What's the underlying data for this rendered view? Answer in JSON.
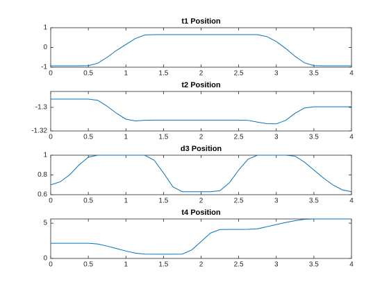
{
  "chart_data": [
    {
      "type": "line",
      "title": "t1 Position",
      "x": [
        0,
        0.125,
        0.25,
        0.375,
        0.5,
        0.625,
        0.75,
        0.875,
        1,
        1.125,
        1.25,
        1.375,
        1.5,
        1.625,
        1.75,
        1.875,
        2,
        2.125,
        2.25,
        2.375,
        2.5,
        2.625,
        2.75,
        2.875,
        3,
        3.125,
        3.25,
        3.375,
        3.5,
        3.625,
        3.75,
        3.875,
        4
      ],
      "series": [
        {
          "color": "#0072bd",
          "values": [
            -0.93,
            -0.93,
            -0.93,
            -0.93,
            -0.92,
            -0.8,
            -0.5,
            -0.15,
            0.15,
            0.45,
            0.63,
            0.65,
            0.65,
            0.65,
            0.65,
            0.65,
            0.65,
            0.65,
            0.65,
            0.65,
            0.65,
            0.65,
            0.65,
            0.55,
            0.3,
            -0.05,
            -0.45,
            -0.78,
            -0.92,
            -0.93,
            -0.93,
            -0.93,
            -0.93
          ]
        }
      ],
      "xlim": [
        0,
        4
      ],
      "xticks": [
        0,
        0.5,
        1,
        1.5,
        2,
        2.5,
        3,
        3.5,
        4
      ],
      "ylim": [
        -1,
        1
      ],
      "yticks": [
        -1,
        0,
        1
      ]
    },
    {
      "type": "line",
      "title": "t2 Position",
      "x": [
        0,
        0.125,
        0.25,
        0.375,
        0.5,
        0.625,
        0.75,
        0.875,
        1,
        1.125,
        1.25,
        1.375,
        1.5,
        1.625,
        1.75,
        1.875,
        2,
        2.125,
        2.25,
        2.375,
        2.5,
        2.625,
        2.75,
        2.875,
        3,
        3.125,
        3.25,
        3.375,
        3.5,
        3.625,
        3.75,
        3.875,
        4
      ],
      "series": [
        {
          "color": "#0072bd",
          "values": [
            -1.293,
            -1.293,
            -1.293,
            -1.293,
            -1.293,
            -1.294,
            -1.299,
            -1.305,
            -1.31,
            -1.3115,
            -1.311,
            -1.3108,
            -1.3108,
            -1.3108,
            -1.3108,
            -1.3108,
            -1.3108,
            -1.3108,
            -1.3108,
            -1.3108,
            -1.3108,
            -1.311,
            -1.3125,
            -1.3138,
            -1.314,
            -1.311,
            -1.305,
            -1.3005,
            -1.2995,
            -1.2995,
            -1.2995,
            -1.2995,
            -1.2995
          ]
        }
      ],
      "xlim": [
        0,
        4
      ],
      "xticks": [
        0,
        0.5,
        1,
        1.5,
        2,
        2.5,
        3,
        3.5,
        4
      ],
      "ylim": [
        -1.32,
        -1.2865
      ],
      "yticks": [
        -1.32,
        -1.3
      ]
    },
    {
      "type": "line",
      "title": "d3 Position",
      "x": [
        0,
        0.125,
        0.25,
        0.375,
        0.5,
        0.625,
        0.75,
        0.875,
        1,
        1.125,
        1.25,
        1.375,
        1.5,
        1.625,
        1.75,
        1.875,
        2,
        2.125,
        2.25,
        2.375,
        2.5,
        2.625,
        2.75,
        2.875,
        3,
        3.125,
        3.25,
        3.375,
        3.5,
        3.625,
        3.75,
        3.875,
        4
      ],
      "series": [
        {
          "color": "#0072bd",
          "values": [
            0.7,
            0.73,
            0.8,
            0.9,
            0.98,
            1,
            1,
            1,
            1,
            1,
            1,
            0.95,
            0.82,
            0.68,
            0.63,
            0.63,
            0.63,
            0.63,
            0.64,
            0.72,
            0.85,
            0.96,
            1,
            1,
            1,
            1,
            0.99,
            0.93,
            0.85,
            0.77,
            0.7,
            0.65,
            0.63
          ]
        }
      ],
      "xlim": [
        0,
        4
      ],
      "xticks": [
        0,
        0.5,
        1,
        1.5,
        2,
        2.5,
        3,
        3.5,
        4
      ],
      "ylim": [
        0.6,
        1
      ],
      "yticks": [
        0.6,
        0.8,
        1
      ]
    },
    {
      "type": "line",
      "title": "t4 Position",
      "x": [
        0,
        0.125,
        0.25,
        0.375,
        0.5,
        0.625,
        0.75,
        0.875,
        1,
        1.125,
        1.25,
        1.375,
        1.5,
        1.625,
        1.75,
        1.875,
        2,
        2.125,
        2.25,
        2.375,
        2.5,
        2.625,
        2.75,
        2.875,
        3,
        3.125,
        3.25,
        3.375,
        3.5,
        3.625,
        3.75,
        3.875,
        4
      ],
      "series": [
        {
          "color": "#0072bd",
          "values": [
            2.15,
            2.15,
            2.15,
            2.15,
            2.15,
            2.05,
            1.75,
            1.4,
            1.05,
            0.75,
            0.62,
            0.6,
            0.6,
            0.6,
            0.62,
            1.2,
            2.4,
            3.6,
            4.1,
            4.12,
            4.12,
            4.13,
            4.2,
            4.5,
            4.8,
            5.1,
            5.35,
            5.55,
            5.6,
            5.6,
            5.6,
            5.6,
            5.6
          ]
        }
      ],
      "xlim": [
        0,
        4
      ],
      "xticks": [
        0,
        0.5,
        1,
        1.5,
        2,
        2.5,
        3,
        3.5,
        4
      ],
      "ylim": [
        0,
        5.6
      ],
      "yticks": [
        0,
        5
      ]
    }
  ]
}
